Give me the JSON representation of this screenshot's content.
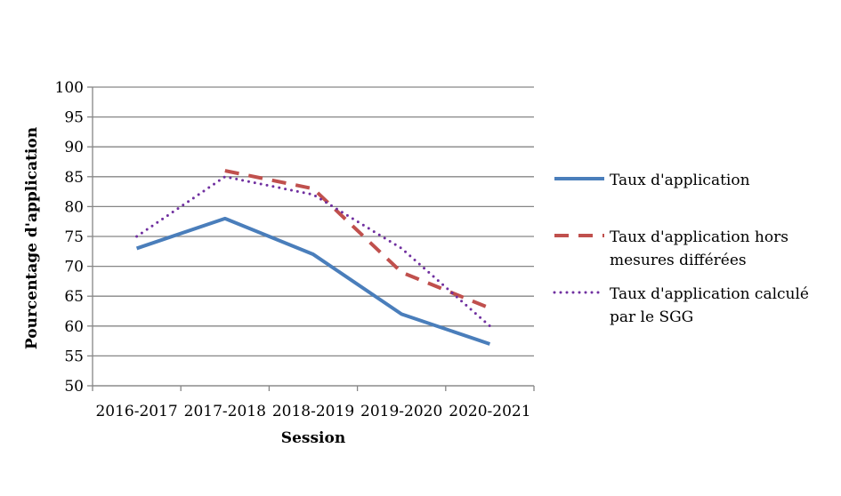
{
  "chart_data": {
    "type": "line",
    "title": "",
    "xlabel": "Session",
    "ylabel": "Pourcentage d'application",
    "categories": [
      "2016-2017",
      "2017-2018",
      "2018-2019",
      "2019-2020",
      "2020-2021"
    ],
    "ylim": [
      50,
      100
    ],
    "yticks": [
      50,
      55,
      60,
      65,
      70,
      75,
      80,
      85,
      90,
      95,
      100
    ],
    "grid": true,
    "legend_position": "right",
    "series": [
      {
        "name": "Taux d'application",
        "legend_lines": [
          "Taux d'application"
        ],
        "style": "solid",
        "color": "#4a7ebb",
        "values": [
          73,
          78,
          72,
          62,
          57
        ]
      },
      {
        "name": "Taux d'application hors mesures différées",
        "legend_lines": [
          "Taux d'application hors",
          "mesures différées"
        ],
        "style": "dashed",
        "color": "#c0504d",
        "values": [
          null,
          86,
          83,
          69,
          63
        ]
      },
      {
        "name": "Taux d'application calculé par le SGG",
        "legend_lines": [
          "Taux d'application calculé",
          "par le SGG"
        ],
        "style": "dotted",
        "color": "#7030a0",
        "values": [
          75,
          85,
          82,
          73,
          60
        ]
      }
    ]
  }
}
